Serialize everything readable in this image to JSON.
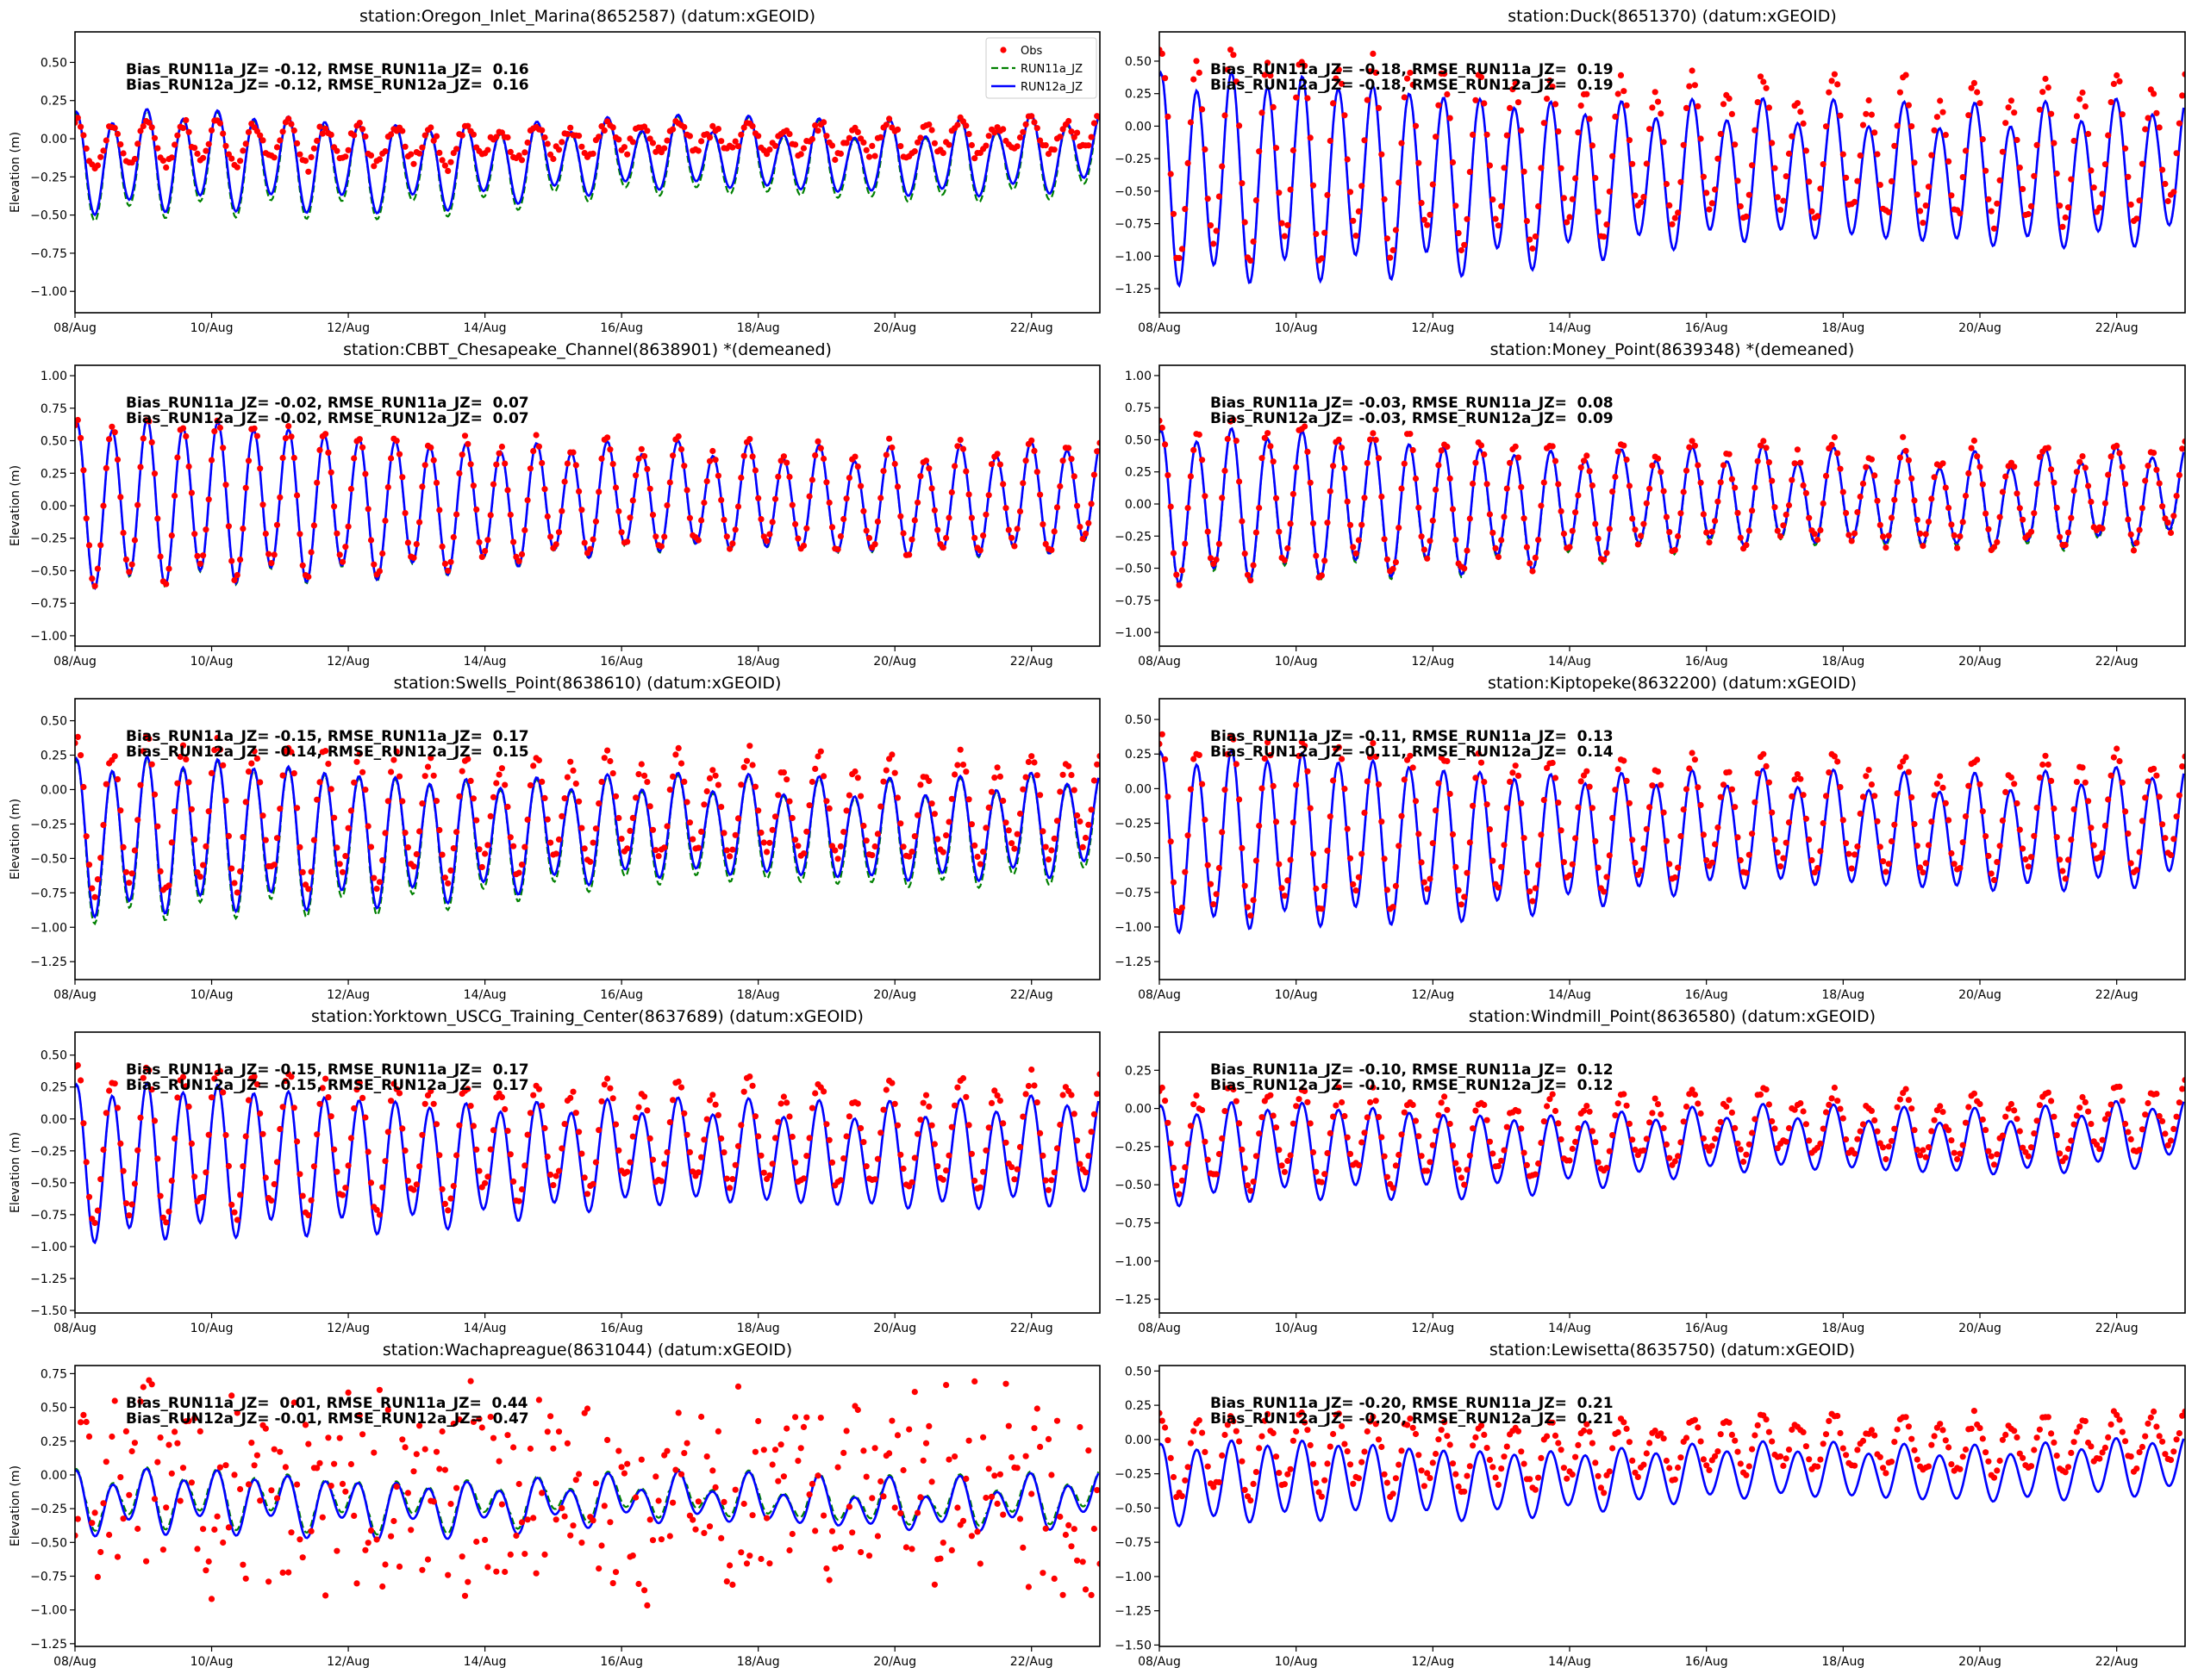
{
  "colors": {
    "obs": "#ff0000",
    "run11a": "#008000",
    "run12a": "#0000ff",
    "axis": "#000000"
  },
  "legend": {
    "obs": "Obs",
    "run11a": "RUN11a_JZ",
    "run12a": "RUN12a_JZ"
  },
  "chart_data": [
    {
      "type": "line",
      "title": "station:Oregon_Inlet_Marina(8652587) (datum:xGEOID)",
      "ylabel": "Elevation (m)",
      "xlim_days": [
        0,
        15
      ],
      "xticks": [
        "08/Aug",
        "10/Aug",
        "12/Aug",
        "14/Aug",
        "16/Aug",
        "18/Aug",
        "20/Aug",
        "22/Aug"
      ],
      "ylim": [
        -1.14,
        0.7
      ],
      "yticks": [
        0.5,
        0.25,
        0,
        -0.25,
        -0.5,
        -0.75,
        -1.0
      ],
      "stats": [
        "Bias_RUN11a_JZ= -0.12, RMSE_RUN11a_JZ=  0.16",
        "Bias_RUN12a_JZ= -0.12, RMSE_RUN12a_JZ=  0.16"
      ],
      "legend": true,
      "model": {
        "mean": [
          -0.17,
          -0.1
        ],
        "amp": [
          0.27,
          0.2
        ],
        "k1": 0.06,
        "run11a_extra": 0.04
      },
      "obs": {
        "offset": 0.12,
        "scale": 0.45,
        "noise": 0.03
      }
    },
    {
      "type": "line",
      "title": "station:Duck(8651370) (datum:xGEOID)",
      "ylabel": "",
      "xlim_days": [
        0,
        15
      ],
      "xticks": [
        "08/Aug",
        "10/Aug",
        "12/Aug",
        "14/Aug",
        "16/Aug",
        "18/Aug",
        "20/Aug",
        "22/Aug"
      ],
      "ylim": [
        -1.435,
        0.725
      ],
      "yticks": [
        0.5,
        0.25,
        0,
        -0.25,
        -0.5,
        -0.75,
        -1.0,
        -1.25
      ],
      "stats": [
        "Bias_RUN11a_JZ= -0.18, RMSE_RUN11a_JZ=  0.19",
        "Bias_RUN12a_JZ= -0.18, RMSE_RUN12a_JZ=  0.19"
      ],
      "legend": false,
      "model": {
        "mean": [
          -0.42,
          -0.36
        ],
        "amp": [
          0.68,
          0.45
        ],
        "k1": 0.1,
        "run11a_extra": 0.0
      },
      "obs": {
        "offset": 0.18,
        "scale": 1.0,
        "noise": 0.04
      }
    },
    {
      "type": "line",
      "title": "station:CBBT_Chesapeake_Channel(8638901) *(demeaned)",
      "ylabel": "Elevation (m)",
      "xlim_days": [
        0,
        15
      ],
      "xticks": [
        "08/Aug",
        "10/Aug",
        "12/Aug",
        "14/Aug",
        "16/Aug",
        "18/Aug",
        "20/Aug",
        "22/Aug"
      ],
      "ylim": [
        -1.08,
        1.08
      ],
      "yticks": [
        1.0,
        0.75,
        0.5,
        0.25,
        0,
        -0.25,
        -0.5,
        -0.75,
        -1.0
      ],
      "stats": [
        "Bias_RUN11a_JZ= -0.02, RMSE_RUN11a_JZ=  0.07",
        "Bias_RUN12a_JZ= -0.02, RMSE_RUN12a_JZ=  0.07"
      ],
      "legend": false,
      "model": {
        "mean": [
          0.0,
          0.06
        ],
        "amp": [
          0.55,
          0.35
        ],
        "k1": 0.06,
        "run11a_extra": 0.01
      },
      "obs": {
        "offset": 0.02,
        "scale": 1.0,
        "noise": 0.03
      }
    },
    {
      "type": "line",
      "title": "station:Money_Point(8639348) *(demeaned)",
      "ylabel": "",
      "xlim_days": [
        0,
        15
      ],
      "xticks": [
        "08/Aug",
        "10/Aug",
        "12/Aug",
        "14/Aug",
        "16/Aug",
        "18/Aug",
        "20/Aug",
        "22/Aug"
      ],
      "ylim": [
        -1.107,
        1.08
      ],
      "yticks": [
        1.0,
        0.75,
        0.5,
        0.25,
        0,
        -0.25,
        -0.5,
        -0.75,
        -1.0
      ],
      "stats": [
        "Bias_RUN11a_JZ= -0.03, RMSE_RUN11a_JZ=  0.08",
        "Bias_RUN12a_JZ= -0.03, RMSE_RUN12a_JZ=  0.09"
      ],
      "legend": false,
      "model": {
        "mean": [
          -0.03,
          0.06
        ],
        "amp": [
          0.5,
          0.3
        ],
        "k1": 0.07,
        "run11a_extra": 0.02
      },
      "obs": {
        "offset": 0.03,
        "scale": 1.05,
        "noise": 0.04
      }
    },
    {
      "type": "line",
      "title": "station:Swells_Point(8638610) (datum:xGEOID)",
      "ylabel": "Elevation (m)",
      "xlim_days": [
        0,
        15
      ],
      "xticks": [
        "08/Aug",
        "10/Aug",
        "12/Aug",
        "14/Aug",
        "16/Aug",
        "18/Aug",
        "20/Aug",
        "22/Aug"
      ],
      "ylim": [
        -1.38,
        0.66
      ],
      "yticks": [
        0.5,
        0.25,
        0,
        -0.25,
        -0.5,
        -0.75,
        -1.0,
        -1.25
      ],
      "stats": [
        "Bias_RUN11a_JZ= -0.15, RMSE_RUN11a_JZ=  0.17",
        "Bias_RUN12a_JZ= -0.14, RMSE_RUN12a_JZ=  0.15"
      ],
      "legend": false,
      "model": {
        "mean": [
          -0.36,
          -0.26
        ],
        "amp": [
          0.48,
          0.3
        ],
        "k1": 0.07,
        "run11a_extra": 0.05
      },
      "obs": {
        "offset": 0.15,
        "scale": 1.0,
        "noise": 0.04
      }
    },
    {
      "type": "line",
      "title": "station:Kiptopeke(8632200) (datum:xGEOID)",
      "ylabel": "",
      "xlim_days": [
        0,
        15
      ],
      "xticks": [
        "08/Aug",
        "10/Aug",
        "12/Aug",
        "14/Aug",
        "16/Aug",
        "18/Aug",
        "20/Aug",
        "22/Aug"
      ],
      "ylim": [
        -1.38,
        0.65
      ],
      "yticks": [
        0.5,
        0.25,
        0,
        -0.25,
        -0.5,
        -0.75,
        -1.0,
        -1.25
      ],
      "stats": [
        "Bias_RUN11a_JZ= -0.11, RMSE_RUN11a_JZ=  0.13",
        "Bias_RUN12a_JZ= -0.11, RMSE_RUN12a_JZ=  0.14"
      ],
      "legend": false,
      "model": {
        "mean": [
          -0.4,
          -0.28
        ],
        "amp": [
          0.55,
          0.35
        ],
        "k1": 0.07,
        "run11a_extra": 0.0
      },
      "obs": {
        "offset": 0.11,
        "scale": 1.0,
        "noise": 0.03
      }
    },
    {
      "type": "line",
      "title": "station:Yorktown_USCG_Training_Center(8637689) (datum:xGEOID)",
      "ylabel": "Elevation (m)",
      "xlim_days": [
        0,
        15
      ],
      "xticks": [
        "08/Aug",
        "10/Aug",
        "12/Aug",
        "14/Aug",
        "16/Aug",
        "18/Aug",
        "20/Aug",
        "22/Aug"
      ],
      "ylim": [
        -1.52,
        0.68
      ],
      "yticks": [
        0.5,
        0.25,
        0,
        -0.25,
        -0.5,
        -0.75,
        -1.0,
        -1.25,
        -1.5
      ],
      "stats": [
        "Bias_RUN11a_JZ= -0.15, RMSE_RUN11a_JZ=  0.17",
        "Bias_RUN12a_JZ= -0.15, RMSE_RUN12a_JZ=  0.17"
      ],
      "legend": false,
      "model": {
        "mean": [
          -0.36,
          -0.25
        ],
        "amp": [
          0.52,
          0.35
        ],
        "k1": 0.07,
        "run11a_extra": 0.0
      },
      "obs": {
        "offset": 0.15,
        "scale": 1.0,
        "noise": 0.04
      }
    },
    {
      "type": "line",
      "title": "station:Windmill_Point(8636580) (datum:xGEOID)",
      "ylabel": "",
      "xlim_days": [
        0,
        15
      ],
      "xticks": [
        "08/Aug",
        "10/Aug",
        "12/Aug",
        "14/Aug",
        "16/Aug",
        "18/Aug",
        "20/Aug",
        "22/Aug"
      ],
      "ylim": [
        -1.34,
        0.5
      ],
      "yticks": [
        0.25,
        0,
        -0.25,
        -0.5,
        -0.75,
        -1.0,
        -1.25
      ],
      "stats": [
        "Bias_RUN11a_JZ= -0.10, RMSE_RUN11a_JZ=  0.12",
        "Bias_RUN12a_JZ= -0.10, RMSE_RUN12a_JZ=  0.12"
      ],
      "legend": false,
      "model": {
        "mean": [
          -0.32,
          -0.17
        ],
        "amp": [
          0.27,
          0.17
        ],
        "k1": 0.05,
        "run11a_extra": 0.0
      },
      "obs": {
        "offset": 0.1,
        "scale": 1.0,
        "noise": 0.03
      }
    },
    {
      "type": "line",
      "title": "station:Wachapreague(8631044) (datum:xGEOID)",
      "ylabel": "Elevation (m)",
      "xlim_days": [
        0,
        15
      ],
      "xticks": [
        "08/Aug",
        "10/Aug",
        "12/Aug",
        "14/Aug",
        "16/Aug",
        "18/Aug",
        "20/Aug",
        "22/Aug"
      ],
      "ylim": [
        -1.27,
        0.81
      ],
      "yticks": [
        0.75,
        0.5,
        0.25,
        0,
        -0.25,
        -0.5,
        -0.75,
        -1.0,
        -1.25
      ],
      "stats": [
        "Bias_RUN11a_JZ=  0.01, RMSE_RUN11a_JZ=  0.44",
        "Bias_RUN12a_JZ= -0.01, RMSE_RUN12a_JZ=  0.47"
      ],
      "legend": false,
      "model": {
        "mean": [
          -0.22,
          -0.2
        ],
        "amp": [
          0.17,
          0.14
        ],
        "k1": 0.08,
        "run11a_extra": -0.04
      },
      "obs": {
        "offset": 0.0,
        "scale": 3.5,
        "noise": 0.25
      }
    },
    {
      "type": "line",
      "title": "station:Lewisetta(8635750) (datum:xGEOID)",
      "ylabel": "",
      "xlim_days": [
        0,
        15
      ],
      "xticks": [
        "08/Aug",
        "10/Aug",
        "12/Aug",
        "14/Aug",
        "16/Aug",
        "18/Aug",
        "20/Aug",
        "22/Aug"
      ],
      "ylim": [
        -1.51,
        0.54
      ],
      "yticks": [
        0.5,
        0.25,
        0,
        -0.25,
        -0.5,
        -0.75,
        -1.0,
        -1.25,
        -1.5
      ],
      "stats": [
        "Bias_RUN11a_JZ= -0.20, RMSE_RUN11a_JZ=  0.21",
        "Bias_RUN12a_JZ= -0.20, RMSE_RUN12a_JZ=  0.21"
      ],
      "legend": false,
      "model": {
        "mean": [
          -0.34,
          -0.2
        ],
        "amp": [
          0.25,
          0.17
        ],
        "k1": 0.04,
        "run11a_extra": 0.0
      },
      "obs": {
        "offset": 0.2,
        "scale": 1.0,
        "noise": 0.04
      }
    }
  ]
}
